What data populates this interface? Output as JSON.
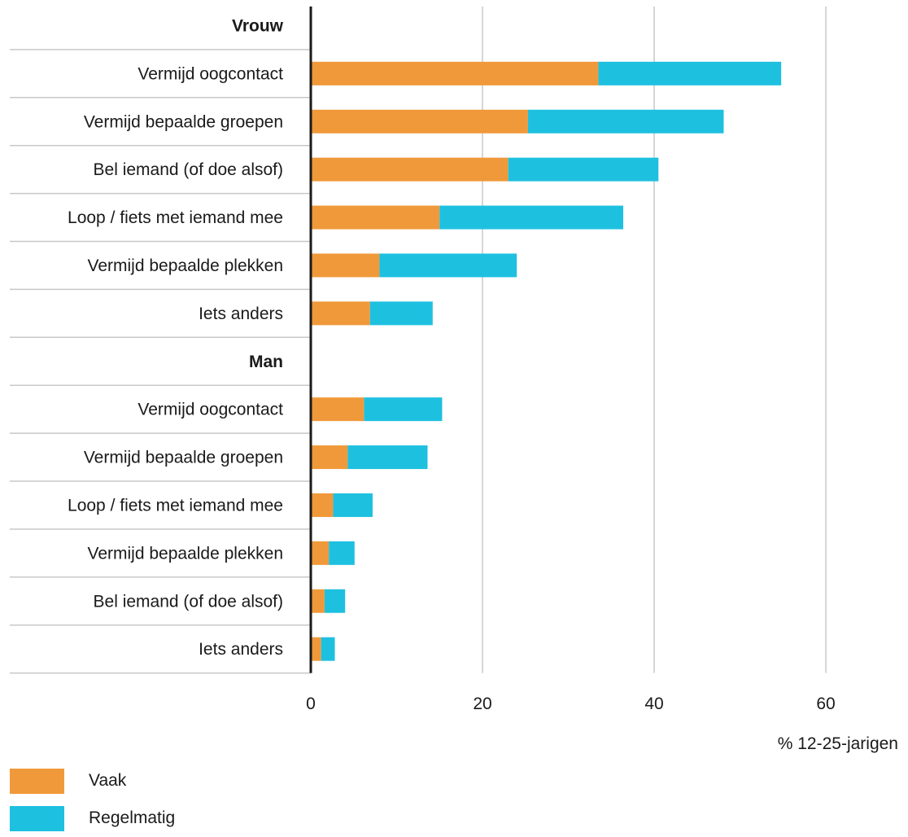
{
  "colors": {
    "vaak": "#f0993a",
    "regelmatig": "#1ec0e0",
    "grid": "#c8c8c8",
    "axis": "#1a1a1a"
  },
  "chart_data": {
    "type": "bar",
    "orientation": "horizontal",
    "stacked": true,
    "groups": [
      {
        "name": "Vrouw",
        "categories": [
          "Vermijd oogcontact",
          "Vermijd bepaalde groepen",
          "Bel iemand (of doe alsof)",
          "Loop / fiets met iemand mee",
          "Vermijd bepaalde plekken",
          "Iets anders"
        ],
        "series": [
          {
            "name": "Vaak",
            "values": [
              33.5,
              25.3,
              23,
              15,
              8,
              6.9
            ]
          },
          {
            "name": "Regelmatig",
            "values": [
              21.3,
              22.8,
              17.5,
              21.4,
              16,
              7.3
            ]
          }
        ]
      },
      {
        "name": "Man",
        "categories": [
          "Vermijd oogcontact",
          "Vermijd bepaalde groepen",
          "Loop / fiets met iemand mee",
          "Vermijd bepaalde plekken",
          "Bel iemand (of doe alsof)",
          "Iets anders"
        ],
        "series": [
          {
            "name": "Vaak",
            "values": [
              6.2,
              4.3,
              2.6,
              2.1,
              1.6,
              1.2
            ]
          },
          {
            "name": "Regelmatig",
            "values": [
              9.1,
              9.3,
              4.6,
              3,
              2.4,
              1.6
            ]
          }
        ]
      }
    ],
    "xticks": [
      0,
      20,
      40,
      60
    ],
    "xlim": [
      0,
      60
    ],
    "xlabel": "% 12-25-jarigen",
    "grid": true,
    "legend": {
      "position": "bottom-left",
      "entries": [
        "Vaak",
        "Regelmatig"
      ]
    }
  }
}
